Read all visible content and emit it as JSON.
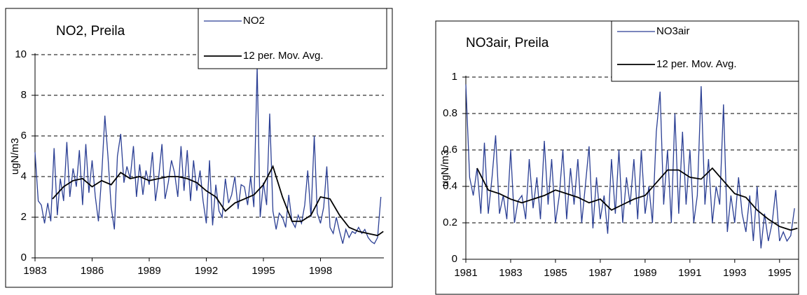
{
  "chart_data": [
    {
      "type": "line",
      "title": "NO2, Preila",
      "ylabel": "ugN/m3",
      "xlim": [
        1983,
        2001.33
      ],
      "xticks": [
        1983,
        1986,
        1989,
        1992,
        1995,
        1998
      ],
      "ylim": [
        0,
        10
      ],
      "yticks": [
        0,
        2,
        4,
        6,
        8,
        10
      ],
      "grid": true,
      "series": [
        {
          "name": "NO2",
          "color": "#2b3f94",
          "x": [
            1983,
            1983.17,
            1983.33,
            1983.5,
            1983.67,
            1983.83,
            1984,
            1984.17,
            1984.33,
            1984.5,
            1984.67,
            1984.83,
            1985,
            1985.17,
            1985.33,
            1985.5,
            1985.67,
            1985.83,
            1986,
            1986.17,
            1986.33,
            1986.5,
            1986.67,
            1986.83,
            1987,
            1987.17,
            1987.33,
            1987.5,
            1987.67,
            1987.83,
            1988,
            1988.17,
            1988.33,
            1988.5,
            1988.67,
            1988.83,
            1989,
            1989.17,
            1989.33,
            1989.5,
            1989.67,
            1989.83,
            1990,
            1990.17,
            1990.33,
            1990.5,
            1990.67,
            1990.83,
            1991,
            1991.17,
            1991.33,
            1991.5,
            1991.67,
            1991.83,
            1992,
            1992.17,
            1992.33,
            1992.5,
            1992.67,
            1992.83,
            1993,
            1993.17,
            1993.33,
            1993.5,
            1993.67,
            1993.83,
            1994,
            1994.17,
            1994.33,
            1994.5,
            1994.67,
            1994.83,
            1995,
            1995.17,
            1995.33,
            1995.5,
            1995.67,
            1995.83,
            1996,
            1996.17,
            1996.33,
            1996.5,
            1996.67,
            1996.83,
            1997,
            1997.17,
            1997.33,
            1997.5,
            1997.67,
            1997.83,
            1998,
            1998.17,
            1998.33,
            1998.5,
            1998.67,
            1998.83,
            1999,
            1999.17,
            1999.33,
            1999.5,
            1999.67,
            1999.83,
            2000,
            2000.17,
            2000.33,
            2000.5,
            2000.67,
            2000.83,
            2001,
            2001.17
          ],
          "values": [
            5.2,
            2.8,
            2.6,
            1.7,
            2.7,
            1.8,
            5.4,
            2.1,
            3.9,
            2.8,
            5.7,
            3.0,
            4.4,
            3.5,
            5.3,
            2.6,
            5.6,
            3.2,
            4.8,
            3.0,
            1.8,
            4.0,
            7.0,
            5.0,
            2.5,
            1.4,
            5.0,
            6.1,
            3.7,
            4.5,
            3.9,
            5.5,
            3.0,
            4.6,
            3.1,
            4.3,
            3.6,
            5.2,
            2.8,
            4.0,
            5.6,
            2.9,
            3.7,
            4.8,
            4.2,
            3.0,
            5.5,
            3.3,
            5.3,
            2.8,
            4.8,
            3.3,
            4.3,
            2.8,
            1.7,
            4.8,
            1.6,
            3.6,
            2.3,
            2.0,
            3.9,
            2.7,
            3.1,
            4.0,
            2.4,
            3.6,
            3.5,
            2.6,
            4.0,
            2.5,
            9.4,
            2.0,
            3.7,
            2.6,
            7.1,
            2.3,
            1.4,
            2.2,
            2.0,
            1.5,
            3.1,
            1.8,
            1.5,
            2.1,
            1.7,
            2.6,
            4.3,
            2.0,
            6.0,
            2.2,
            1.7,
            2.5,
            4.5,
            1.5,
            1.2,
            2.0,
            1.3,
            0.7,
            1.4,
            1.0,
            1.3,
            1.2,
            1.5,
            1.2,
            1.4,
            1.0,
            0.8,
            0.7,
            1.0,
            3.0
          ]
        },
        {
          "name": "12 per. Mov. Avg.",
          "color": "#000000",
          "x": [
            1983.92,
            1984.5,
            1985,
            1985.5,
            1986,
            1986.5,
            1987,
            1987.5,
            1988,
            1988.5,
            1989,
            1989.5,
            1990,
            1990.5,
            1991,
            1991.5,
            1992,
            1992.5,
            1993,
            1993.5,
            1994,
            1994.5,
            1995,
            1995.5,
            1996,
            1996.5,
            1997,
            1997.5,
            1998,
            1998.5,
            1999,
            1999.5,
            2000,
            2000.5,
            2001,
            2001.3
          ],
          "values": [
            2.9,
            3.5,
            3.8,
            3.9,
            3.5,
            3.8,
            3.6,
            4.2,
            3.9,
            4.0,
            3.8,
            3.9,
            4.0,
            4.0,
            3.9,
            3.7,
            3.3,
            3.0,
            2.3,
            2.7,
            2.9,
            3.1,
            3.6,
            4.5,
            3.0,
            1.8,
            1.8,
            2.1,
            3.0,
            2.9,
            2.1,
            1.5,
            1.3,
            1.2,
            1.1,
            1.3
          ]
        }
      ]
    },
    {
      "type": "line",
      "title": "NO3air, Preila",
      "ylabel": "ugN/m3",
      "xlim": [
        1981,
        1995.85
      ],
      "xticks": [
        1981,
        1983,
        1985,
        1987,
        1989,
        1991,
        1993,
        1995
      ],
      "ylim": [
        0,
        1
      ],
      "yticks": [
        0,
        0.2,
        0.4,
        0.6,
        0.8,
        1
      ],
      "grid": true,
      "series": [
        {
          "name": "NO3air",
          "color": "#2b3f94",
          "x": [
            1981,
            1981.17,
            1981.33,
            1981.5,
            1981.67,
            1981.83,
            1982,
            1982.17,
            1982.33,
            1982.5,
            1982.67,
            1982.83,
            1983,
            1983.17,
            1983.33,
            1983.5,
            1983.67,
            1983.83,
            1984,
            1984.17,
            1984.33,
            1984.5,
            1984.67,
            1984.83,
            1985,
            1985.17,
            1985.33,
            1985.5,
            1985.67,
            1985.83,
            1986,
            1986.17,
            1986.33,
            1986.5,
            1986.67,
            1986.83,
            1987,
            1987.17,
            1987.33,
            1987.5,
            1987.67,
            1987.83,
            1988,
            1988.17,
            1988.33,
            1988.5,
            1988.67,
            1988.83,
            1989,
            1989.17,
            1989.33,
            1989.5,
            1989.67,
            1989.83,
            1990,
            1990.17,
            1990.33,
            1990.5,
            1990.67,
            1990.83,
            1991,
            1991.17,
            1991.33,
            1991.5,
            1991.67,
            1991.83,
            1992,
            1992.17,
            1992.33,
            1992.5,
            1992.67,
            1992.83,
            1993,
            1993.17,
            1993.33,
            1993.5,
            1993.67,
            1993.83,
            1994,
            1994.17,
            1994.33,
            1994.5,
            1994.67,
            1994.83,
            1995,
            1995.17,
            1995.33,
            1995.5,
            1995.67
          ],
          "values": [
            0.96,
            0.45,
            0.35,
            0.5,
            0.25,
            0.64,
            0.25,
            0.45,
            0.68,
            0.25,
            0.35,
            0.22,
            0.6,
            0.2,
            0.32,
            0.35,
            0.22,
            0.55,
            0.28,
            0.45,
            0.22,
            0.65,
            0.3,
            0.55,
            0.2,
            0.35,
            0.6,
            0.22,
            0.5,
            0.3,
            0.55,
            0.2,
            0.4,
            0.62,
            0.17,
            0.45,
            0.22,
            0.35,
            0.14,
            0.55,
            0.25,
            0.6,
            0.2,
            0.45,
            0.3,
            0.55,
            0.22,
            0.6,
            0.25,
            0.4,
            0.2,
            0.7,
            0.92,
            0.3,
            0.6,
            0.2,
            0.8,
            0.25,
            0.7,
            0.3,
            0.6,
            0.2,
            0.35,
            0.95,
            0.3,
            0.55,
            0.2,
            0.4,
            0.3,
            0.85,
            0.15,
            0.35,
            0.2,
            0.45,
            0.25,
            0.15,
            0.35,
            0.1,
            0.4,
            0.06,
            0.25,
            0.1,
            0.2,
            0.38,
            0.1,
            0.15,
            0.1,
            0.13,
            0.28
          ]
        },
        {
          "name": "12 per. Mov. Avg.",
          "color": "#000000",
          "x": [
            1981.5,
            1982,
            1982.5,
            1983,
            1983.5,
            1984,
            1984.5,
            1985,
            1985.5,
            1986,
            1986.5,
            1987,
            1987.5,
            1988,
            1988.5,
            1989,
            1989.5,
            1990,
            1990.5,
            1991,
            1991.5,
            1992,
            1992.5,
            1993,
            1993.5,
            1994,
            1994.5,
            1995,
            1995.5,
            1995.8
          ],
          "values": [
            0.5,
            0.38,
            0.36,
            0.33,
            0.31,
            0.33,
            0.35,
            0.38,
            0.36,
            0.34,
            0.31,
            0.33,
            0.27,
            0.3,
            0.33,
            0.35,
            0.42,
            0.49,
            0.49,
            0.45,
            0.44,
            0.5,
            0.43,
            0.36,
            0.34,
            0.27,
            0.22,
            0.18,
            0.16,
            0.17
          ]
        }
      ]
    }
  ]
}
